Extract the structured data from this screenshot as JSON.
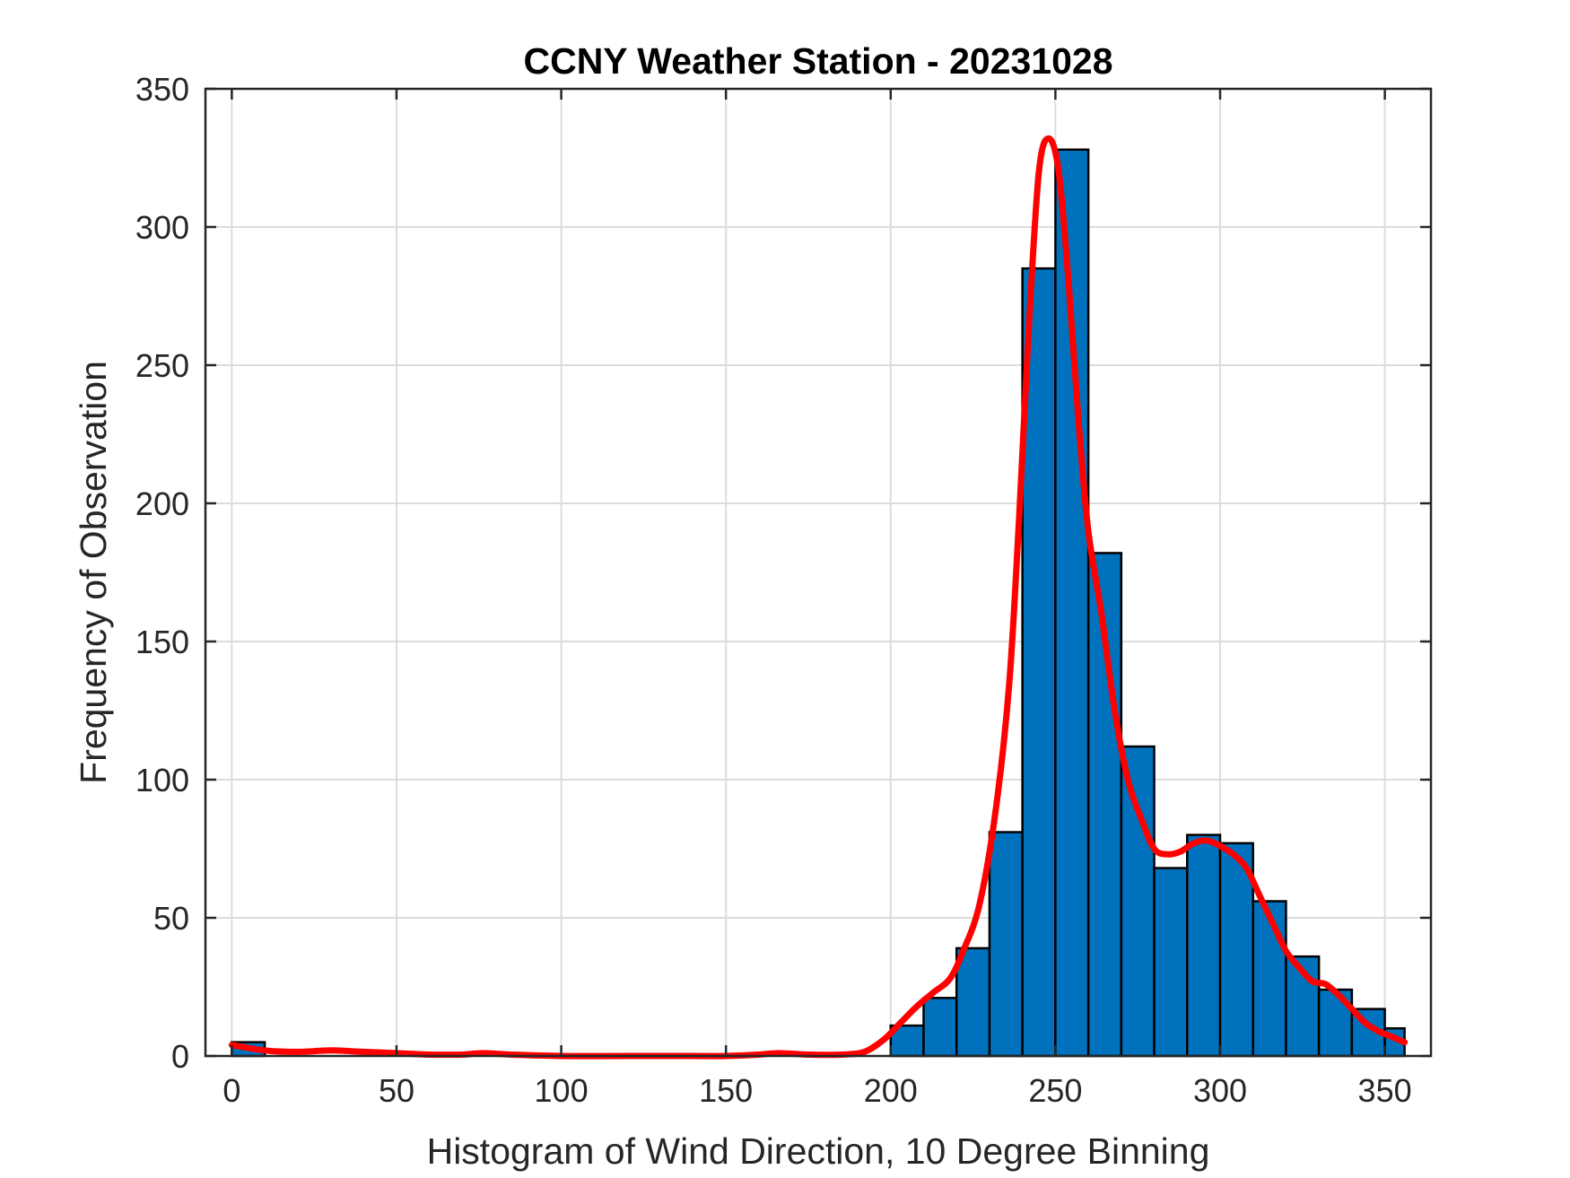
{
  "chart_data": {
    "type": "bar",
    "title": "CCNY Weather Station - 20231028",
    "xlabel": "Histogram of Wind Direction, 10 Degree Binning",
    "ylabel": "Frequency of Observation",
    "xlim": [
      -8,
      364
    ],
    "ylim": [
      0,
      350
    ],
    "xticks": [
      0,
      50,
      100,
      150,
      200,
      250,
      300,
      350
    ],
    "yticks": [
      0,
      50,
      100,
      150,
      200,
      250,
      300,
      350
    ],
    "grid": true,
    "bin_width": 10,
    "bin_edges": [
      0,
      10,
      20,
      30,
      40,
      50,
      60,
      70,
      80,
      90,
      100,
      110,
      120,
      130,
      140,
      150,
      160,
      170,
      180,
      190,
      200,
      210,
      220,
      230,
      240,
      250,
      260,
      270,
      280,
      290,
      300,
      310,
      320,
      330,
      340,
      350,
      356
    ],
    "counts": [
      5,
      0,
      0,
      0,
      0,
      0,
      0,
      0,
      0,
      0,
      0,
      0,
      0,
      0,
      0,
      0,
      0,
      0,
      0,
      0,
      11,
      21,
      39,
      81,
      285,
      328,
      182,
      112,
      68,
      80,
      77,
      56,
      36,
      24,
      17,
      10
    ],
    "bar_color": "#0072BD",
    "bar_edge_color": "#000000",
    "density_curve": {
      "color": "#FF0000",
      "x": [
        0,
        10,
        20,
        30,
        40,
        50,
        60,
        70,
        76,
        85,
        100,
        120,
        140,
        150,
        160,
        166,
        175,
        185,
        192,
        198,
        203,
        208,
        213,
        218,
        222,
        227,
        232,
        236,
        239,
        242,
        245,
        248,
        251,
        254,
        257,
        260,
        264,
        268,
        272,
        276,
        280,
        284,
        288,
        292,
        296,
        300,
        304,
        308,
        312,
        316,
        320,
        324,
        328,
        332,
        336,
        340,
        344,
        348,
        352,
        356
      ],
      "y": [
        4,
        2,
        1.5,
        2,
        1.5,
        1,
        0.5,
        0.5,
        1,
        0.5,
        0,
        0,
        0,
        0,
        0.5,
        1,
        0.5,
        0.5,
        1.5,
        6,
        12,
        18,
        23,
        28,
        38,
        55,
        90,
        135,
        195,
        265,
        320,
        332,
        320,
        280,
        230,
        190,
        160,
        125,
        100,
        86,
        75,
        73,
        74,
        77,
        78,
        76,
        73,
        68,
        58,
        48,
        38,
        32,
        27,
        26,
        22,
        17,
        12,
        9,
        7,
        5
      ]
    }
  }
}
